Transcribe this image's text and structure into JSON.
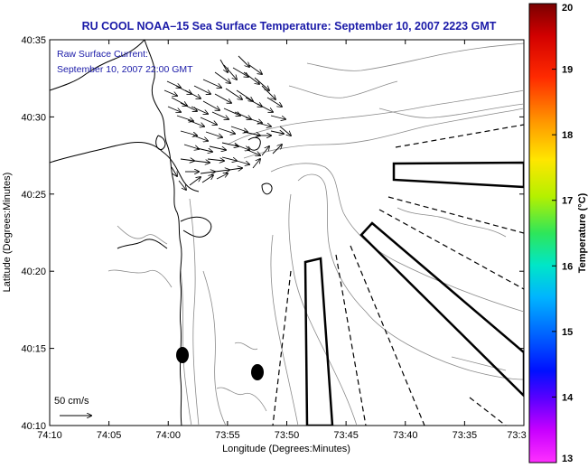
{
  "title": "RU COOL  NOAA–15  Sea Surface Temperature:  September 10, 2007 2223 GMT",
  "annotation": {
    "line1": "Raw Surface Current:",
    "line2": "September 10, 2007 22:00 GMT"
  },
  "scale_label": "50 cm/s",
  "xlabel": "Longitude (Degrees:Minutes)",
  "ylabel": "Latitude (Degrees:Minutes)",
  "x_ticks": [
    "74:10",
    "74:05",
    "74:00",
    "73:55",
    "73:50",
    "73:45",
    "73:40",
    "73:35",
    "73:3"
  ],
  "y_ticks": [
    "40:35",
    "40:30",
    "40:25",
    "40:20",
    "40:15",
    "40:10"
  ],
  "colorbar": {
    "label": "Temperature (°C)",
    "ticks": [
      "20",
      "19",
      "18",
      "17",
      "16",
      "15",
      "14",
      "13"
    ],
    "range": [
      13,
      20
    ]
  }
}
